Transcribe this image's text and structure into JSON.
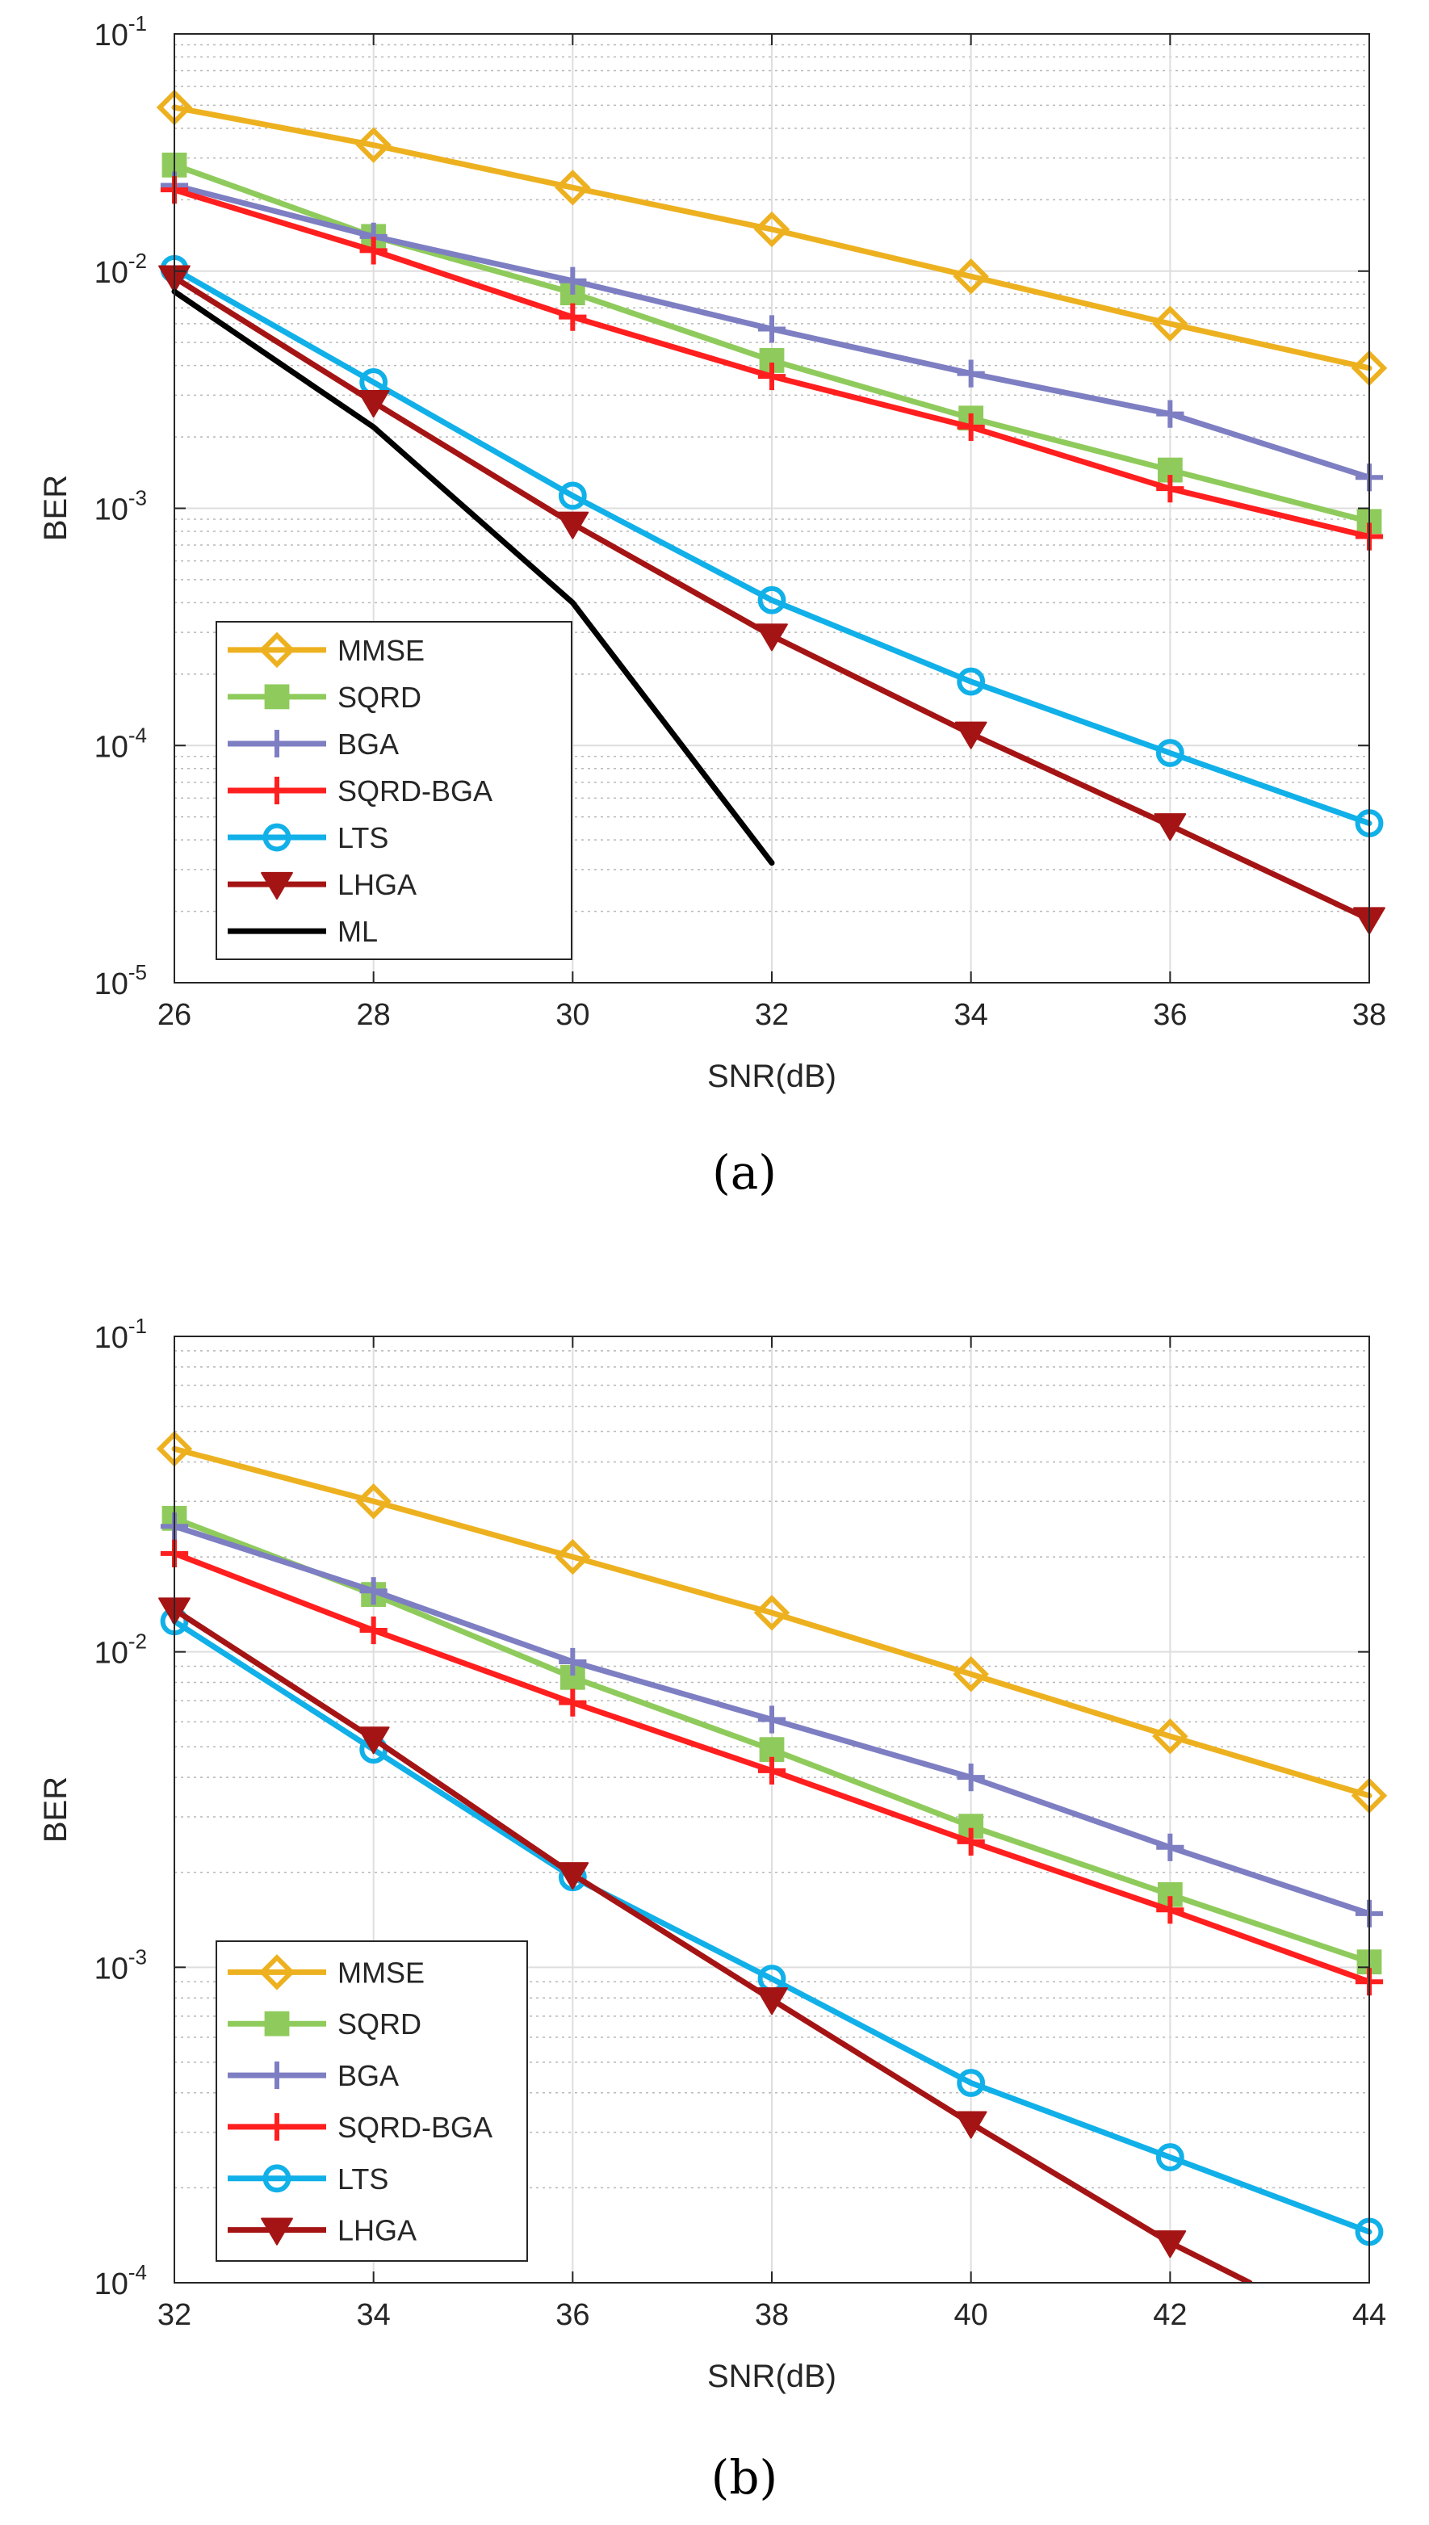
{
  "chart_data": [
    {
      "type": "line",
      "caption": "(a)",
      "xlabel": "SNR(dB)",
      "ylabel": "BER",
      "xlim": [
        26,
        38
      ],
      "ylim": [
        1e-05,
        0.1
      ],
      "yscale": "log",
      "grid": true,
      "minor_grid": true,
      "legend_position": "bottom-left",
      "x_ticks": [
        26,
        28,
        30,
        32,
        34,
        36,
        38
      ],
      "x_tick_labels": [
        "26",
        "28",
        "30",
        "32",
        "34",
        "36",
        "38"
      ],
      "y_tick_exponents": [
        "-1",
        "-2",
        "-3",
        "-4",
        "-5"
      ],
      "y_tick_base": "10",
      "series": [
        {
          "name": "MMSE",
          "color": "#EDB120",
          "marker": "diamond",
          "x": [
            26,
            28,
            30,
            32,
            34,
            36,
            38
          ],
          "y": [
            0.049,
            0.034,
            0.0225,
            0.015,
            0.0095,
            0.006,
            0.0039
          ]
        },
        {
          "name": "SQRD",
          "color": "#8FCB5C",
          "marker": "square",
          "x": [
            26,
            28,
            30,
            32,
            34,
            36,
            38
          ],
          "y": [
            0.028,
            0.014,
            0.0081,
            0.0042,
            0.0024,
            0.00145,
            0.00088
          ]
        },
        {
          "name": "BGA",
          "color": "#7E7EC3",
          "marker": "plus",
          "x": [
            26,
            28,
            30,
            32,
            34,
            36,
            38
          ],
          "y": [
            0.023,
            0.014,
            0.0091,
            0.0057,
            0.0037,
            0.0025,
            0.00135
          ]
        },
        {
          "name": "SQRD-BGA",
          "color": "#FF1F1F",
          "marker": "plus",
          "x": [
            26,
            28,
            30,
            32,
            34,
            36,
            38
          ],
          "y": [
            0.022,
            0.0122,
            0.0064,
            0.0036,
            0.0022,
            0.00121,
            0.00076
          ]
        },
        {
          "name": "LTS",
          "color": "#11B0E8",
          "marker": "circle",
          "x": [
            26,
            28,
            30,
            32,
            34,
            36,
            38
          ],
          "y": [
            0.0102,
            0.0034,
            0.00113,
            0.00041,
            0.000186,
            9.3e-05,
            4.7e-05
          ]
        },
        {
          "name": "LHGA",
          "color": "#A51414",
          "marker": "triangle-down",
          "x": [
            26,
            28,
            30,
            32,
            34,
            36,
            38
          ],
          "y": [
            0.0094,
            0.0028,
            0.00086,
            0.00029,
            0.000112,
            4.6e-05,
            1.85e-05
          ]
        },
        {
          "name": "ML",
          "color": "#000000",
          "marker": "none",
          "x": [
            26,
            28,
            30,
            32
          ],
          "y": [
            0.0082,
            0.0022,
            0.0004,
            3.2e-05
          ]
        }
      ]
    },
    {
      "type": "line",
      "caption": "(b)",
      "xlabel": "SNR(dB)",
      "ylabel": "BER",
      "xlim": [
        32,
        44
      ],
      "ylim": [
        0.0001,
        0.1
      ],
      "yscale": "log",
      "grid": true,
      "minor_grid": true,
      "legend_position": "bottom-left",
      "x_ticks": [
        32,
        34,
        36,
        38,
        40,
        42,
        44
      ],
      "x_tick_labels": [
        "32",
        "34",
        "36",
        "38",
        "40",
        "42",
        "44"
      ],
      "y_tick_exponents": [
        "-1",
        "-2",
        "-3",
        "-4"
      ],
      "y_tick_base": "10",
      "series": [
        {
          "name": "MMSE",
          "color": "#EDB120",
          "marker": "diamond",
          "x": [
            32,
            34,
            36,
            38,
            40,
            42,
            44
          ],
          "y": [
            0.044,
            0.03,
            0.02,
            0.0133,
            0.0085,
            0.0054,
            0.0035
          ]
        },
        {
          "name": "SQRD",
          "color": "#8FCB5C",
          "marker": "square",
          "x": [
            32,
            34,
            36,
            38,
            40,
            42,
            44
          ],
          "y": [
            0.0265,
            0.0152,
            0.0083,
            0.0049,
            0.0028,
            0.0017,
            0.00104
          ]
        },
        {
          "name": "BGA",
          "color": "#7E7EC3",
          "marker": "plus",
          "x": [
            32,
            34,
            36,
            38,
            40,
            42,
            44
          ],
          "y": [
            0.025,
            0.0156,
            0.0093,
            0.0061,
            0.004,
            0.0024,
            0.00148
          ]
        },
        {
          "name": "SQRD-BGA",
          "color": "#FF1F1F",
          "marker": "plus",
          "x": [
            32,
            34,
            36,
            38,
            40,
            42,
            44
          ],
          "y": [
            0.0205,
            0.0117,
            0.0069,
            0.0042,
            0.0025,
            0.00152,
            0.0009
          ]
        },
        {
          "name": "LTS",
          "color": "#11B0E8",
          "marker": "circle",
          "x": [
            32,
            34,
            36,
            38,
            40,
            42,
            44
          ],
          "y": [
            0.0125,
            0.0049,
            0.00193,
            0.00092,
            0.00043,
            0.00025,
            0.000145
          ]
        },
        {
          "name": "LHGA",
          "color": "#A51414",
          "marker": "triangle-down",
          "x": [
            32,
            34,
            36,
            38,
            40,
            42,
            42.8
          ],
          "y": [
            0.0136,
            0.0053,
            0.00197,
            0.00079,
            0.00032,
            0.000134,
            0.0001
          ]
        }
      ]
    }
  ]
}
